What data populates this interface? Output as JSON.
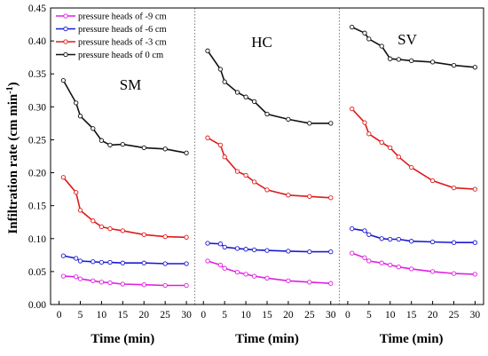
{
  "chart_data": {
    "type": "line",
    "ylabel": "Infiltration rate (cm min",
    "ylabel_sup": "-1",
    "ylabel_close": ")",
    "xlabel": "Time (min)",
    "ylim": [
      0,
      0.45
    ],
    "yticks": [
      0.0,
      0.05,
      0.1,
      0.15,
      0.2,
      0.25,
      0.3,
      0.35,
      0.4,
      0.45
    ],
    "yticks_text": [
      "0.00",
      "0.05",
      "0.10",
      "0.15",
      "0.20",
      "0.25",
      "0.30",
      "0.35",
      "0.40",
      "0.45"
    ],
    "xlim": [
      -2,
      32
    ],
    "xticks": [
      0,
      5,
      10,
      15,
      20,
      25,
      30
    ],
    "xticks_text": [
      "0",
      "5",
      "10",
      "15",
      "20",
      "25",
      "30"
    ],
    "legend_position": "top-left",
    "series_meta": [
      {
        "name": "pressure heads of -9 cm",
        "color": "#e020e0"
      },
      {
        "name": "pressure heads of -6 cm",
        "color": "#1a1ad0"
      },
      {
        "name": "pressure heads of -3 cm",
        "color": "#e01a1a"
      },
      {
        "name": "pressure heads of 0 cm",
        "color": "#111111"
      }
    ],
    "x": [
      1,
      4,
      5,
      8,
      10,
      12,
      15,
      20,
      25,
      30
    ],
    "panels": [
      {
        "label": "SM",
        "series": [
          {
            "name": "pressure heads of -9 cm",
            "values": [
              0.043,
              0.042,
              0.039,
              0.036,
              0.034,
              0.033,
              0.031,
              0.03,
              0.029,
              0.029
            ]
          },
          {
            "name": "pressure heads of -6 cm",
            "values": [
              0.074,
              0.07,
              0.066,
              0.065,
              0.064,
              0.064,
              0.063,
              0.063,
              0.062,
              0.062
            ]
          },
          {
            "name": "pressure heads of -3 cm",
            "values": [
              0.193,
              0.17,
              0.143,
              0.127,
              0.118,
              0.115,
              0.112,
              0.106,
              0.103,
              0.102
            ]
          },
          {
            "name": "pressure heads of 0 cm",
            "values": [
              0.34,
              0.306,
              0.286,
              0.267,
              0.249,
              0.242,
              0.243,
              0.238,
              0.236,
              0.23
            ]
          }
        ]
      },
      {
        "label": "HC",
        "series": [
          {
            "name": "pressure heads of -9 cm",
            "values": [
              0.066,
              0.06,
              0.055,
              0.049,
              0.046,
              0.043,
              0.04,
              0.036,
              0.034,
              0.032
            ]
          },
          {
            "name": "pressure heads of -6 cm",
            "values": [
              0.093,
              0.092,
              0.087,
              0.085,
              0.084,
              0.083,
              0.082,
              0.081,
              0.08,
              0.08
            ]
          },
          {
            "name": "pressure heads of -3 cm",
            "values": [
              0.253,
              0.242,
              0.224,
              0.202,
              0.196,
              0.186,
              0.174,
              0.166,
              0.164,
              0.162
            ]
          },
          {
            "name": "pressure heads of 0 cm",
            "values": [
              0.385,
              0.357,
              0.338,
              0.322,
              0.315,
              0.308,
              0.289,
              0.281,
              0.275,
              0.275
            ]
          }
        ]
      },
      {
        "label": "SV",
        "series": [
          {
            "name": "pressure heads of -9 cm",
            "values": [
              0.078,
              0.071,
              0.066,
              0.063,
              0.06,
              0.057,
              0.054,
              0.05,
              0.047,
              0.046
            ]
          },
          {
            "name": "pressure heads of -6 cm",
            "values": [
              0.115,
              0.112,
              0.106,
              0.1,
              0.099,
              0.099,
              0.096,
              0.095,
              0.094,
              0.094
            ]
          },
          {
            "name": "pressure heads of -3 cm",
            "values": [
              0.297,
              0.276,
              0.259,
              0.246,
              0.238,
              0.224,
              0.208,
              0.188,
              0.177,
              0.175
            ]
          },
          {
            "name": "pressure heads of 0 cm",
            "values": [
              0.421,
              0.412,
              0.403,
              0.392,
              0.373,
              0.372,
              0.37,
              0.368,
              0.363,
              0.36
            ]
          }
        ]
      }
    ]
  }
}
